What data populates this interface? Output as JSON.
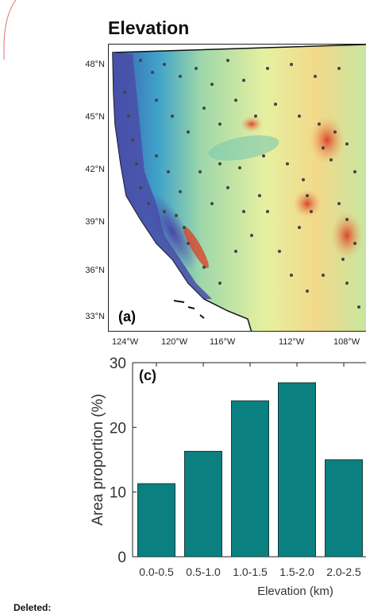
{
  "figure": {
    "title": "Elevation",
    "map_panel_label": "(a)",
    "lat_ticks": [
      "48°N",
      "45°N",
      "42°N",
      "39°N",
      "36°N",
      "33°N"
    ],
    "lon_ticks": [
      "124°W",
      "120°W",
      "116°W",
      "112°W",
      "108°W"
    ]
  },
  "chart_data": {
    "type": "bar",
    "panel_label": "(c)",
    "categories": [
      "0.0-0.5",
      "0.5-1.0",
      "1.0-1.5",
      "1.5-2.0",
      "2.0-2.5"
    ],
    "values": [
      11.3,
      16.3,
      24.1,
      26.9,
      15.0
    ],
    "xlabel": "Elevation (km)",
    "ylabel": "Area proportion (%)",
    "ylim": [
      0,
      30
    ],
    "yticks": [
      0,
      10,
      20,
      30
    ],
    "bar_color": "#0a8080",
    "grid": false
  },
  "note": {
    "label": "Deleted:"
  },
  "colors": {
    "border_red": "#e07070",
    "ocean": "#ffffff",
    "station_dot": "#444444"
  }
}
